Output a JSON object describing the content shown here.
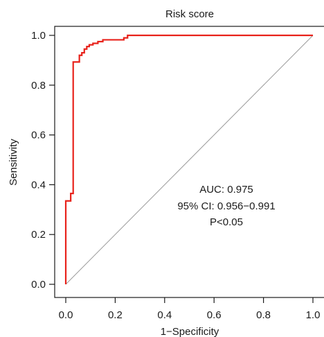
{
  "chart_data": {
    "type": "line",
    "title": "Risk score",
    "xlabel": "1−Specificity",
    "ylabel": "Sensitivity",
    "xlim": [
      0.0,
      1.0
    ],
    "ylim": [
      0.0,
      1.0
    ],
    "xticks": [
      "0.0",
      "0.2",
      "0.4",
      "0.6",
      "0.8",
      "1.0"
    ],
    "yticks": [
      "0.0",
      "0.2",
      "0.4",
      "0.6",
      "0.8",
      "1.0"
    ],
    "grid": false,
    "legend": "none",
    "reference_line": {
      "x": [
        0,
        1
      ],
      "y": [
        0,
        1
      ],
      "color": "#9a9a9a"
    },
    "series": [
      {
        "color": "#e8221b",
        "x": [
          0.0,
          0.0,
          0.0,
          0.02,
          0.02,
          0.03,
          0.03,
          0.055,
          0.055,
          0.065,
          0.065,
          0.075,
          0.075,
          0.085,
          0.085,
          0.095,
          0.095,
          0.11,
          0.11,
          0.13,
          0.13,
          0.15,
          0.15,
          0.235,
          0.235,
          0.25,
          0.25,
          1.0
        ],
        "y": [
          0.0,
          0.335,
          0.335,
          0.335,
          0.365,
          0.365,
          0.893,
          0.893,
          0.92,
          0.92,
          0.93,
          0.93,
          0.945,
          0.945,
          0.955,
          0.955,
          0.962,
          0.962,
          0.968,
          0.968,
          0.975,
          0.975,
          0.982,
          0.982,
          0.99,
          0.99,
          1.0,
          1.0
        ]
      }
    ],
    "annotations": [
      "AUC: 0.975",
      "95% CI: 0.956−0.991",
      "P<0.05"
    ]
  }
}
